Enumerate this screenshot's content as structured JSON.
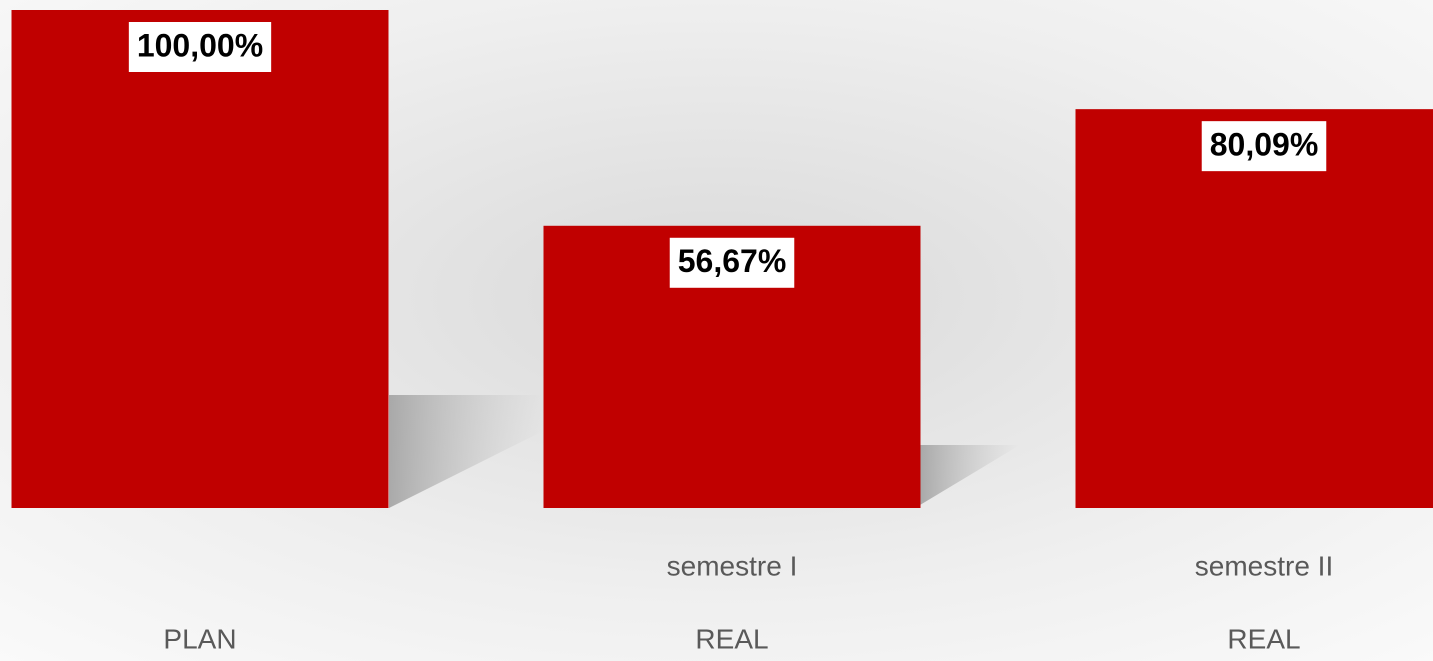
{
  "chart_data": {
    "type": "bar",
    "categories": [
      "PLAN",
      "REAL",
      "REAL"
    ],
    "subcategories": [
      null,
      "semestre I",
      "semestre II"
    ],
    "values": [
      100,
      56.67,
      80.09
    ],
    "value_labels": [
      "100,00%",
      "56,67%",
      "80,09%"
    ],
    "color": "#c00000",
    "ylim": [
      0,
      100
    ]
  }
}
